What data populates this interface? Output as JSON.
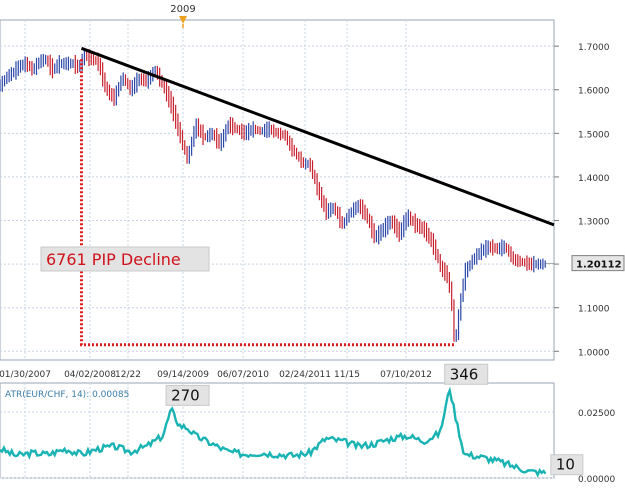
{
  "charts": {
    "price": {
      "type": "candlestick",
      "y_ticks": [
        1.0,
        1.1,
        1.2,
        1.3,
        1.4,
        1.5,
        1.6,
        1.7
      ],
      "y_tick_labels": [
        "1.0000",
        "1.1000",
        "1.2000",
        "1.3000",
        "1.4000",
        "1.5000",
        "1.6000",
        "1.7000"
      ],
      "ylim": [
        0.98,
        1.76
      ],
      "last_price_label": "1.20112",
      "last_price": 1.2011,
      "top_marker_label": "2009",
      "x_tick_labels": [
        "01/30/2007",
        "04/02/2008",
        "12/22",
        "09/14/2009",
        "06/07/2010",
        "02/24/2011",
        "11/15",
        "07/10/2012"
      ],
      "series_points": [
        [
          0,
          1.61
        ],
        [
          4,
          1.63
        ],
        [
          8,
          1.64
        ],
        [
          12,
          1.655
        ],
        [
          16,
          1.66
        ],
        [
          20,
          1.645
        ],
        [
          24,
          1.665
        ],
        [
          28,
          1.67
        ],
        [
          32,
          1.645
        ],
        [
          36,
          1.66
        ],
        [
          40,
          1.66
        ],
        [
          45,
          1.66
        ],
        [
          48,
          1.65
        ],
        [
          52,
          1.68
        ],
        [
          55,
          1.67
        ],
        [
          60,
          1.665
        ],
        [
          65,
          1.6
        ],
        [
          70,
          1.58
        ],
        [
          75,
          1.63
        ],
        [
          80,
          1.6
        ],
        [
          85,
          1.625
        ],
        [
          90,
          1.62
        ],
        [
          95,
          1.645
        ],
        [
          100,
          1.61
        ],
        [
          105,
          1.565
        ],
        [
          110,
          1.5
        ],
        [
          115,
          1.44
        ],
        [
          120,
          1.52
        ],
        [
          125,
          1.49
        ],
        [
          130,
          1.5
        ],
        [
          135,
          1.475
        ],
        [
          140,
          1.52
        ],
        [
          145,
          1.51
        ],
        [
          150,
          1.5
        ],
        [
          155,
          1.51
        ],
        [
          160,
          1.505
        ],
        [
          165,
          1.51
        ],
        [
          170,
          1.5
        ],
        [
          175,
          1.495
        ],
        [
          178,
          1.47
        ],
        [
          182,
          1.45
        ],
        [
          186,
          1.43
        ],
        [
          190,
          1.43
        ],
        [
          195,
          1.37
        ],
        [
          200,
          1.32
        ],
        [
          205,
          1.33
        ],
        [
          210,
          1.29
        ],
        [
          215,
          1.32
        ],
        [
          220,
          1.335
        ],
        [
          225,
          1.31
        ],
        [
          230,
          1.26
        ],
        [
          235,
          1.28
        ],
        [
          240,
          1.3
        ],
        [
          245,
          1.27
        ],
        [
          250,
          1.31
        ],
        [
          255,
          1.29
        ],
        [
          260,
          1.28
        ],
        [
          265,
          1.25
        ],
        [
          268,
          1.22
        ],
        [
          271,
          1.185
        ],
        [
          274,
          1.18
        ],
        [
          277,
          1.12
        ],
        [
          279,
          1.01
        ],
        [
          282,
          1.1
        ],
        [
          285,
          1.18
        ],
        [
          290,
          1.21
        ],
        [
          295,
          1.23
        ],
        [
          300,
          1.24
        ],
        [
          305,
          1.235
        ],
        [
          310,
          1.24
        ],
        [
          315,
          1.21
        ],
        [
          320,
          1.205
        ],
        [
          325,
          1.2
        ],
        [
          330,
          1.2
        ],
        [
          335,
          1.2
        ]
      ],
      "trendline": [
        [
          50,
          1.695
        ],
        [
          340,
          1.29
        ]
      ],
      "annotation": {
        "text": "6761 PIP Decline",
        "from": [
          50,
          1.67
        ],
        "corner": [
          50,
          1.015
        ],
        "to": [
          279,
          1.015
        ]
      }
    },
    "atr": {
      "type": "line",
      "legend": "ATR(EUR/CHF, 14): 0.00085",
      "y_ticks": [
        0,
        0.025
      ],
      "y_tick_labels": [
        "0.00000",
        "0.02500"
      ],
      "ylim": [
        0,
        0.036
      ],
      "series_points": [
        [
          0,
          0.011
        ],
        [
          10,
          0.0085
        ],
        [
          20,
          0.0095
        ],
        [
          30,
          0.009
        ],
        [
          40,
          0.011
        ],
        [
          50,
          0.009
        ],
        [
          60,
          0.011
        ],
        [
          70,
          0.012
        ],
        [
          80,
          0.01
        ],
        [
          90,
          0.012
        ],
        [
          100,
          0.016
        ],
        [
          105,
          0.026
        ],
        [
          110,
          0.02
        ],
        [
          115,
          0.019
        ],
        [
          120,
          0.016
        ],
        [
          130,
          0.013
        ],
        [
          140,
          0.01
        ],
        [
          150,
          0.009
        ],
        [
          160,
          0.0095
        ],
        [
          170,
          0.009
        ],
        [
          180,
          0.0085
        ],
        [
          190,
          0.0095
        ],
        [
          200,
          0.015
        ],
        [
          210,
          0.014
        ],
        [
          220,
          0.012
        ],
        [
          230,
          0.013
        ],
        [
          240,
          0.015
        ],
        [
          250,
          0.016
        ],
        [
          260,
          0.014
        ],
        [
          270,
          0.017
        ],
        [
          276,
          0.034
        ],
        [
          280,
          0.022
        ],
        [
          285,
          0.009
        ],
        [
          295,
          0.008
        ],
        [
          305,
          0.0065
        ],
        [
          315,
          0.0045
        ],
        [
          325,
          0.0025
        ],
        [
          335,
          0.002
        ]
      ],
      "labels": [
        {
          "text": "270",
          "at": [
            105,
            0.026
          ]
        },
        {
          "text": "346",
          "at": [
            276,
            0.034
          ]
        },
        {
          "text": "10",
          "at": [
            335,
            0.002
          ]
        }
      ]
    }
  },
  "colors": {
    "grid": "#c8d4e3",
    "trend": "#000000",
    "dotted": "#dd1a1a",
    "atr": "#19b3b3",
    "candle_up": "#2a46a8",
    "candle_down": "#c81e2b"
  }
}
